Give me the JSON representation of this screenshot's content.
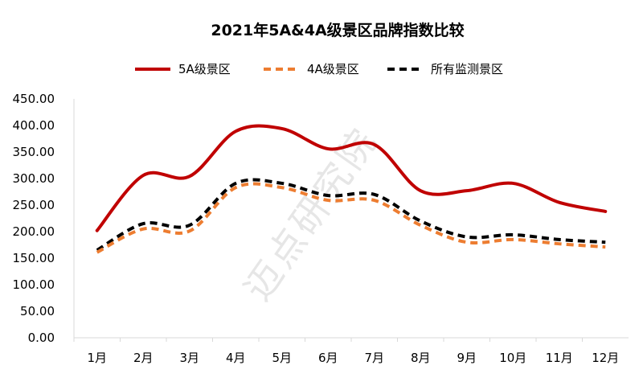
{
  "chart_data": {
    "type": "line",
    "title": "2021年5A&4A级景区品牌指数比较",
    "xlabel": "",
    "ylabel": "",
    "categories": [
      "1月",
      "2月",
      "3月",
      "4月",
      "5月",
      "6月",
      "7月",
      "8月",
      "9月",
      "10月",
      "11月",
      "12月"
    ],
    "ylim": [
      0,
      450
    ],
    "yticks": [
      "0.00",
      "50.00",
      "100.00",
      "150.00",
      "200.00",
      "250.00",
      "300.00",
      "350.00",
      "400.00",
      "450.00"
    ],
    "grid": false,
    "legend_position": "top",
    "series": [
      {
        "name": "5A级景区",
        "color": "#C00000",
        "dash": "solid",
        "values": [
          202,
          306,
          304,
          389,
          394,
          356,
          364,
          277,
          277,
          291,
          255,
          238
        ]
      },
      {
        "name": "4A级景区",
        "color": "#ED7D31",
        "dash": "dashed",
        "values": [
          161,
          205,
          201,
          283,
          283,
          259,
          259,
          212,
          180,
          185,
          177,
          171
        ]
      },
      {
        "name": "所有监测景区",
        "color": "#000000",
        "dash": "dashed",
        "values": [
          165,
          215,
          212,
          291,
          291,
          268,
          270,
          220,
          190,
          194,
          185,
          180
        ]
      }
    ],
    "watermark": "迈点研究院"
  }
}
